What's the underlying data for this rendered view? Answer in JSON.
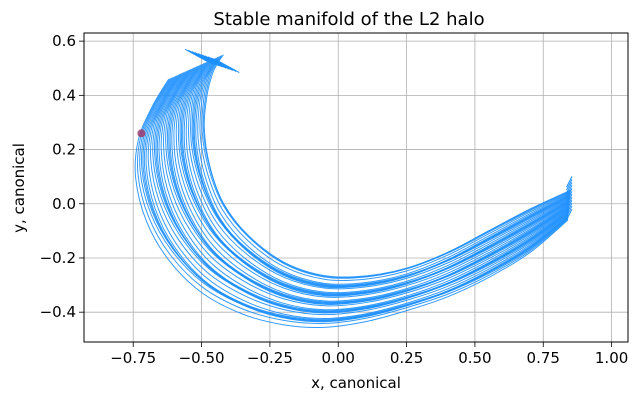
{
  "chart_data": {
    "type": "line",
    "title": "Stable manifold of the L2 halo",
    "xlabel": "x, canonical",
    "ylabel": "y, canonical",
    "xlim": [
      -0.93,
      1.06
    ],
    "ylim": [
      -0.51,
      0.63
    ],
    "xticks": [
      -0.75,
      -0.5,
      -0.25,
      0.0,
      0.25,
      0.5,
      0.75,
      1.0
    ],
    "xtick_labels": [
      "−0.75",
      "−0.50",
      "−0.25",
      "0.00",
      "0.25",
      "0.50",
      "0.75",
      "1.00"
    ],
    "yticks": [
      -0.4,
      -0.2,
      0.0,
      0.2,
      0.4,
      0.6
    ],
    "ytick_labels": [
      "−0.4",
      "−0.2",
      "0.0",
      "0.2",
      "0.4",
      "0.6"
    ],
    "grid": true,
    "line_color": "#1e90ff",
    "marker_color": "#9b3a6e",
    "trajectory_count": 40,
    "outer_trajectory": {
      "x": [
        0.84,
        0.7,
        0.55,
        0.4,
        0.25,
        0.1,
        -0.05,
        -0.2,
        -0.35,
        -0.5,
        -0.62,
        -0.7,
        -0.74,
        -0.73,
        -0.68,
        -0.62,
        -0.56,
        -0.53
      ],
      "y": [
        -0.06,
        -0.18,
        -0.27,
        -0.34,
        -0.39,
        -0.43,
        -0.45,
        -0.44,
        -0.4,
        -0.32,
        -0.2,
        -0.06,
        0.1,
        0.24,
        0.36,
        0.46,
        0.54,
        0.57
      ]
    },
    "inner_trajectory": {
      "x": [
        0.85,
        0.7,
        0.55,
        0.4,
        0.25,
        0.1,
        -0.05,
        -0.2,
        -0.33,
        -0.42,
        -0.47,
        -0.49,
        -0.48,
        -0.46,
        -0.44,
        -0.42
      ],
      "y": [
        0.05,
        -0.02,
        -0.1,
        -0.18,
        -0.24,
        -0.27,
        -0.27,
        -0.22,
        -0.12,
        0.0,
        0.14,
        0.28,
        0.4,
        0.48,
        0.52,
        0.55
      ]
    },
    "halo_marker": {
      "x": -0.72,
      "y": 0.26
    }
  }
}
